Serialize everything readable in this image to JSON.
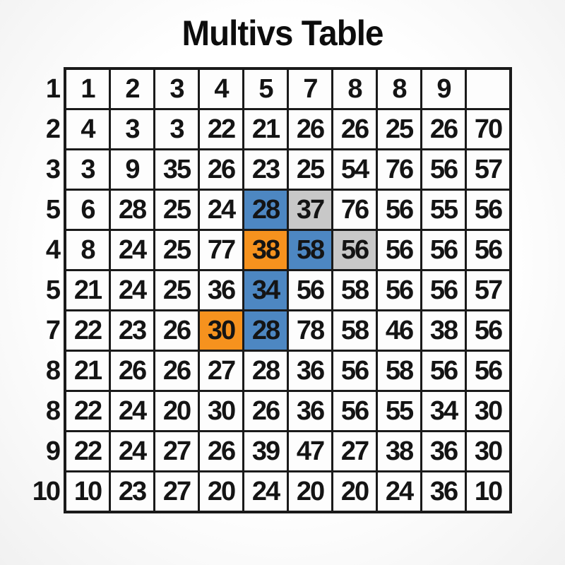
{
  "title": "Multivs Table",
  "colors": {
    "blue": "#4d87c2",
    "orange": "#f6921e",
    "gray": "#c8c8c8",
    "grid_line": "#1a1a1a",
    "cell_bg": "#fdfdfd",
    "text": "#141414"
  },
  "chart_data": {
    "type": "table",
    "title": "Multivs Table",
    "row_labels": [
      "1",
      "2",
      "3",
      "5",
      "4",
      "5",
      "7",
      "8",
      "8",
      "9",
      "10"
    ],
    "rows": [
      [
        "1",
        "2",
        "3",
        "4",
        "5",
        "7",
        "8",
        "8",
        "9",
        ""
      ],
      [
        "4",
        "3",
        "3",
        "22",
        "21",
        "26",
        "26",
        "25",
        "26",
        "70"
      ],
      [
        "3",
        "9",
        "35",
        "26",
        "23",
        "25",
        "54",
        "76",
        "56",
        "57"
      ],
      [
        "6",
        "28",
        "25",
        "24",
        "28",
        "37",
        "76",
        "56",
        "55",
        "56"
      ],
      [
        "8",
        "24",
        "25",
        "77",
        "38",
        "58",
        "56",
        "56",
        "56",
        "56"
      ],
      [
        "21",
        "24",
        "25",
        "36",
        "34",
        "56",
        "58",
        "56",
        "56",
        "57"
      ],
      [
        "22",
        "23",
        "26",
        "30",
        "28",
        "78",
        "58",
        "46",
        "38",
        "56"
      ],
      [
        "21",
        "26",
        "26",
        "27",
        "28",
        "36",
        "56",
        "58",
        "56",
        "56"
      ],
      [
        "22",
        "24",
        "20",
        "30",
        "26",
        "36",
        "56",
        "55",
        "34",
        "30"
      ],
      [
        "22",
        "24",
        "27",
        "26",
        "39",
        "47",
        "27",
        "38",
        "36",
        "30"
      ],
      [
        "10",
        "23",
        "27",
        "20",
        "24",
        "20",
        "20",
        "24",
        "36",
        "10"
      ]
    ],
    "highlighted_cells": [
      {
        "row": 3,
        "col": 4,
        "value": "28",
        "color": "blue"
      },
      {
        "row": 3,
        "col": 5,
        "value": "37",
        "color": "gray"
      },
      {
        "row": 4,
        "col": 4,
        "value": "38",
        "color": "orange"
      },
      {
        "row": 4,
        "col": 5,
        "value": "58",
        "color": "blue"
      },
      {
        "row": 4,
        "col": 6,
        "value": "56",
        "color": "gray"
      },
      {
        "row": 5,
        "col": 4,
        "value": "34",
        "color": "blue"
      },
      {
        "row": 6,
        "col": 3,
        "value": "30",
        "color": "orange"
      },
      {
        "row": 6,
        "col": 4,
        "value": "28",
        "color": "blue"
      }
    ],
    "layout": {
      "grid_on": true,
      "legend_position": "none"
    }
  }
}
